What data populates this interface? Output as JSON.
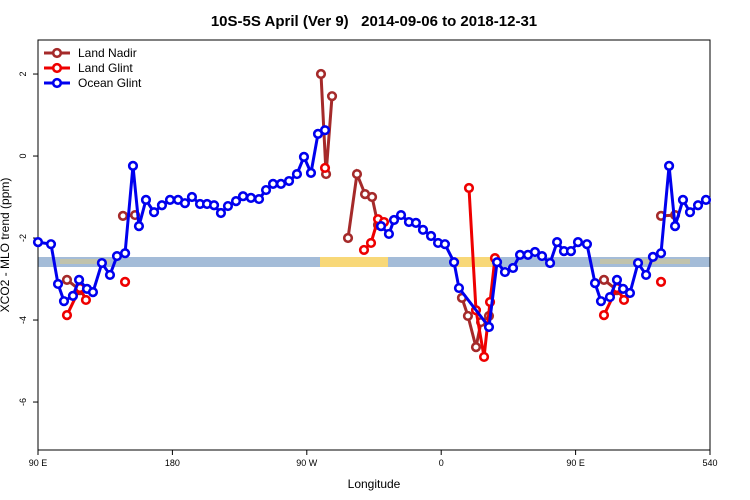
{
  "chart_data": {
    "type": "line",
    "title": "10S-5S April (Ver 9)   2014-09-06 to 2018-12-31",
    "x_label": "Longitude",
    "y_label": "XCO2 - MLO trend (ppm)",
    "xlim": [
      90,
      540
    ],
    "ylim": [
      -7.17,
      2.83
    ],
    "xticks": [
      {
        "value": 90,
        "label": "90 E"
      },
      180,
      {
        "value": 270,
        "label": "90 W"
      },
      {
        "value": 360,
        "label": "0"
      },
      {
        "value": 450,
        "label": "90 E"
      },
      540
    ],
    "yticks": [
      -6,
      -4,
      -2,
      0,
      2
    ],
    "legend": "top-left",
    "series": [
      {
        "name": "Land Nadir",
        "color": "#a52a2a",
        "x": [
          109.4,
          118.1,
          null,
          146.9,
          155.0,
          null,
          279.5,
          282.9,
          286.9,
          null,
          297.6,
          303.6,
          309.0,
          313.7,
          317.7,
          null,
          373.9,
          377.9,
          383.3,
          386.7,
          392.0,
          null,
          469.0,
          477.7,
          null,
          507.2,
          516.6
        ],
        "values": [
          -3.02,
          -3.27,
          null,
          -1.46,
          -1.44,
          null,
          2.0,
          -0.44,
          1.46,
          null,
          -2.0,
          -0.44,
          -0.93,
          -1.0,
          -1.68,
          null,
          -3.46,
          -3.9,
          -4.66,
          -4.05,
          -3.9,
          null,
          -3.02,
          -3.27,
          null,
          -1.46,
          -1.44
        ]
      },
      {
        "name": "Land Glint",
        "color": "#ee0000",
        "x": [
          109.4,
          118.1,
          122.1,
          null,
          148.3,
          null,
          282.2,
          null,
          308.3,
          313.0,
          317.7,
          321.7,
          null,
          378.6,
          383.3,
          388.7,
          392.7,
          396.0,
          null,
          469.0,
          477.7,
          482.4,
          null,
          507.2
        ],
        "values": [
          -3.88,
          -3.22,
          -3.51,
          null,
          -3.07,
          null,
          -0.29,
          null,
          -2.29,
          -2.12,
          -1.54,
          -1.61,
          null,
          -0.78,
          -3.76,
          -4.9,
          -3.56,
          -2.49,
          null,
          -3.88,
          -3.22,
          -3.51,
          null,
          -3.07
        ]
      },
      {
        "name": "Ocean Glint",
        "color": "#0000ee",
        "x": [
          90,
          98.7,
          103.4,
          107.4,
          113.4,
          117.5,
          122.8,
          126.8,
          132.8,
          138.2,
          142.9,
          148.3,
          153.6,
          157.6,
          162.3,
          167.7,
          173.0,
          178.4,
          183.8,
          188.4,
          193.1,
          198.5,
          203.2,
          207.9,
          212.5,
          217.2,
          222.6,
          227.3,
          232.6,
          238.0,
          242.7,
          247.4,
          252.7,
          258.1,
          263.4,
          268.1,
          272.8,
          277.5,
          282.2,
          null,
          319.7,
          325.0,
          328.4,
          333.1,
          338.4,
          343.1,
          347.8,
          353.2,
          357.9,
          362.5,
          368.6,
          371.9,
          392.0,
          397.4,
          402.7,
          408.1,
          412.8,
          418.1,
          422.8,
          427.5,
          432.9,
          437.6,
          442.2,
          446.9,
          451.6,
          457.6,
          463.0,
          467.0,
          473.0,
          477.7,
          481.8,
          486.4,
          491.8,
          497.2,
          501.8,
          507.2,
          512.6,
          516.6,
          521.9,
          526.6,
          532.0,
          537.3
        ],
        "values": [
          -2.1,
          -2.15,
          -3.12,
          -3.54,
          -3.41,
          -3.02,
          -3.24,
          -3.32,
          -2.61,
          -2.9,
          -2.44,
          -2.37,
          -0.24,
          -1.71,
          -1.07,
          -1.37,
          -1.2,
          -1.07,
          -1.07,
          -1.15,
          -1.0,
          -1.17,
          -1.17,
          -1.2,
          -1.39,
          -1.22,
          -1.1,
          -0.98,
          -1.02,
          -1.05,
          -0.83,
          -0.68,
          -0.68,
          -0.61,
          -0.44,
          -0.02,
          -0.41,
          0.54,
          0.63,
          null,
          -1.71,
          -1.9,
          -1.56,
          -1.44,
          -1.61,
          -1.63,
          -1.8,
          -1.95,
          -2.12,
          -2.15,
          -2.59,
          -3.22,
          -4.17,
          -2.59,
          -2.83,
          -2.73,
          -2.41,
          -2.41,
          -2.34,
          -2.44,
          -2.61,
          -2.1,
          -2.32,
          -2.32,
          -2.1,
          -2.15,
          -3.1,
          -3.54,
          -3.44,
          -3.02,
          -3.24,
          -3.34,
          -2.61,
          -2.9,
          -2.46,
          -2.37,
          -0.24,
          -1.71,
          -1.07,
          -1.37,
          -1.2,
          -1.07
        ]
      }
    ]
  }
}
